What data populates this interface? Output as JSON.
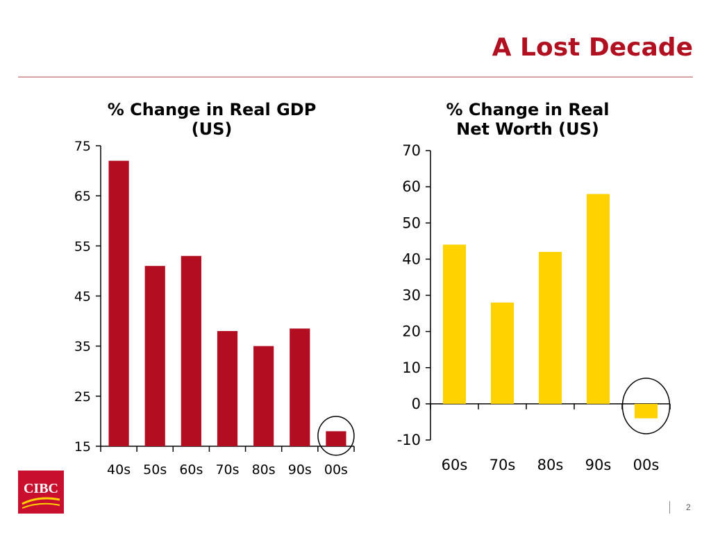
{
  "slide": {
    "title": "A Lost Decade",
    "page_number": "2",
    "brand": "CIBC",
    "colors": {
      "title": "#b01020",
      "rule": "#d9a0a6",
      "logo": "#c8102e"
    }
  },
  "chart_data": [
    {
      "type": "bar",
      "title_lines": [
        "% Change in Real GDP",
        "(US)"
      ],
      "categories": [
        "40s",
        "50s",
        "60s",
        "70s",
        "80s",
        "90s",
        "00s"
      ],
      "values": [
        72,
        51,
        53,
        38,
        35,
        38.5,
        18
      ],
      "ylim": [
        15,
        75
      ],
      "yticks": [
        15,
        25,
        35,
        45,
        55,
        65,
        75
      ],
      "color": "#b30d22",
      "highlight": "00s",
      "xlabel": "",
      "ylabel": ""
    },
    {
      "type": "bar",
      "title_lines": [
        "% Change in Real",
        "Net Worth (US)"
      ],
      "categories": [
        "60s",
        "70s",
        "80s",
        "90s",
        "00s"
      ],
      "values": [
        44,
        28,
        42,
        58,
        -4
      ],
      "ylim": [
        -10,
        70
      ],
      "yticks": [
        -10,
        0,
        10,
        20,
        30,
        40,
        50,
        60,
        70
      ],
      "color": "#ffd200",
      "highlight": "00s",
      "xlabel": "",
      "ylabel": ""
    }
  ]
}
